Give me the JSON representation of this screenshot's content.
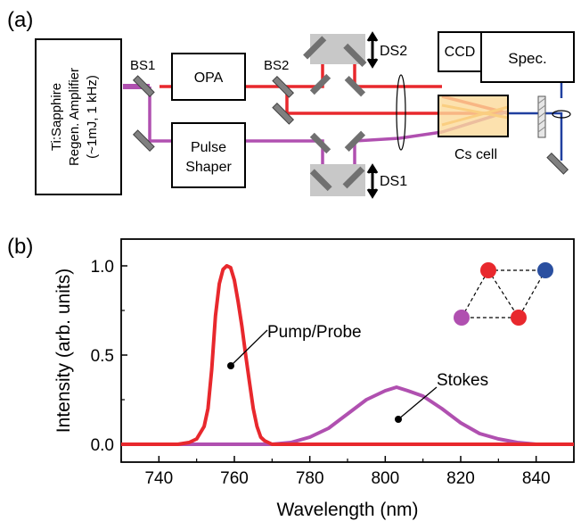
{
  "panel_a": {
    "label": "(a)",
    "laser": {
      "line1": "Ti:Sapphire",
      "line2": "Regen. Amplifier",
      "line3": "(~1mJ, 1 kHz)"
    },
    "bs1": "BS1",
    "bs2": "BS2",
    "opa": "OPA",
    "pulse_shaper": {
      "line1": "Pulse",
      "line2": "Shaper"
    },
    "ds2": "DS2",
    "ds1": "DS1",
    "ccd": "CCD",
    "spec": "Spec.",
    "cs_cell": "Cs cell",
    "colors": {
      "pump": "#e8282d",
      "stokes": "#b050b0",
      "signal": "#2040a0",
      "delay_stage": "#c8c8c8",
      "cell_fill": "#fbd99a"
    }
  },
  "panel_b": {
    "label": "(b)",
    "annotations": {
      "pump": "Pump/Probe",
      "stokes": "Stokes"
    },
    "inset_colors": {
      "red": "#e8282d",
      "blue": "#2a4fa0",
      "purple": "#b050b0"
    }
  },
  "chart_data": {
    "type": "line",
    "xlabel": "Wavelength (nm)",
    "ylabel": "Intensity (arb. units)",
    "xlim": [
      730,
      850
    ],
    "ylim": [
      -0.1,
      1.15
    ],
    "x_ticks": [
      "740",
      "760",
      "780",
      "800",
      "820",
      "840"
    ],
    "y_ticks": [
      "0.0",
      "0.5",
      "1.0"
    ],
    "x_tick_values": [
      740,
      760,
      780,
      800,
      820,
      840
    ],
    "y_tick_values": [
      0.0,
      0.5,
      1.0
    ],
    "grid": false,
    "series": [
      {
        "color": "#e8282d",
        "x": [
          730,
          745,
          748,
          750,
          752,
          753,
          754,
          755,
          756,
          757,
          758,
          759,
          760,
          761,
          762,
          763,
          764,
          765,
          766,
          767,
          768,
          770,
          775,
          790,
          810,
          830,
          850
        ],
        "y": [
          0.0,
          0.0,
          0.01,
          0.03,
          0.1,
          0.2,
          0.42,
          0.72,
          0.9,
          0.98,
          1.0,
          0.99,
          0.92,
          0.8,
          0.66,
          0.5,
          0.35,
          0.2,
          0.1,
          0.04,
          0.02,
          0.0,
          0.0,
          0.0,
          0.0,
          0.0,
          0.0
        ]
      },
      {
        "color": "#b050b0",
        "x": [
          730,
          770,
          775,
          780,
          785,
          790,
          795,
          800,
          803,
          806,
          810,
          815,
          820,
          825,
          830,
          835,
          840,
          845,
          850
        ],
        "y": [
          0.0,
          0.0,
          0.01,
          0.04,
          0.09,
          0.17,
          0.25,
          0.3,
          0.32,
          0.3,
          0.27,
          0.2,
          0.12,
          0.06,
          0.03,
          0.01,
          0.0,
          0.0,
          0.0
        ]
      }
    ]
  }
}
